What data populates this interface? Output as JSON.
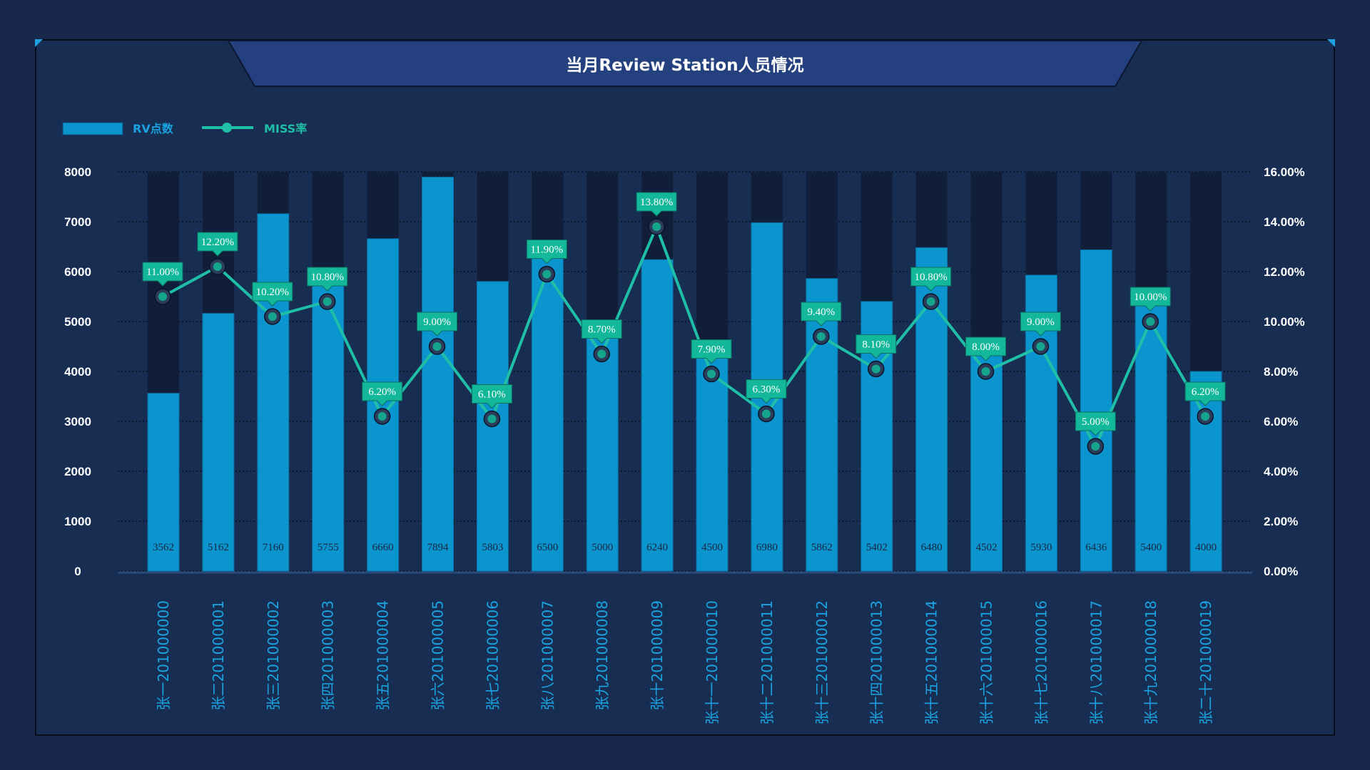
{
  "title": "当月Review Station人员情况",
  "legend": {
    "bar_label": "RV点数",
    "line_label": "MISS率"
  },
  "colors": {
    "background": "#17284a",
    "panel": "#182d52",
    "bar": "#0a95cf",
    "bar_track": "#111e3a",
    "line": "#1fbfa7",
    "point": "#14a58c",
    "label_box": "#13b79a",
    "header": "#24407f",
    "x_label": "#1aa3e0"
  },
  "chart_data": {
    "type": "bar",
    "categories": [
      "张一201000000",
      "张二201000001",
      "张三201000002",
      "张四201000003",
      "张五201000004",
      "张六201000005",
      "张七201000006",
      "张八201000007",
      "张九201000008",
      "张十201000009",
      "张十一201000010",
      "张十二201000011",
      "张十三201000012",
      "张十四201000013",
      "张十五201000014",
      "张十六201000015",
      "张十七201000016",
      "张十八201000017",
      "张十九201000018",
      "张二十201000019"
    ],
    "series": [
      {
        "name": "RV点数",
        "type": "bar",
        "axis": "left",
        "values": [
          3562,
          5162,
          7160,
          5755,
          6660,
          7894,
          5803,
          6500,
          5000,
          6240,
          4500,
          6980,
          5862,
          5402,
          6480,
          4502,
          5930,
          6436,
          5400,
          4000
        ]
      },
      {
        "name": "MISS率",
        "type": "line",
        "axis": "right",
        "values": [
          11.0,
          12.2,
          10.2,
          10.8,
          6.2,
          9.0,
          6.1,
          11.9,
          8.7,
          13.8,
          7.9,
          6.3,
          9.4,
          8.1,
          10.8,
          8.0,
          9.0,
          5.0,
          10.0,
          6.2
        ],
        "labels": [
          "11.00%",
          "12.20%",
          "10.20%",
          "10.80%",
          "6.20%",
          "9.00%",
          "6.10%",
          "11.90%",
          "8.70%",
          "13.80%",
          "7.90%",
          "6.30%",
          "9.40%",
          "8.10%",
          "10.80%",
          "8.00%",
          "9.00%",
          "5.00%",
          "10.00%",
          "6.20%"
        ]
      }
    ],
    "ylim": [
      0,
      8000
    ],
    "y_ticks": [
      "0",
      "1000",
      "2000",
      "3000",
      "4000",
      "5000",
      "6000",
      "7000",
      "8000"
    ],
    "y2lim": [
      0,
      16
    ],
    "y2_ticks": [
      "0.00%",
      "2.00%",
      "4.00%",
      "6.00%",
      "8.00%",
      "10.00%",
      "12.00%",
      "14.00%",
      "16.00%"
    ],
    "grid": true,
    "legend_position": "top-left"
  }
}
